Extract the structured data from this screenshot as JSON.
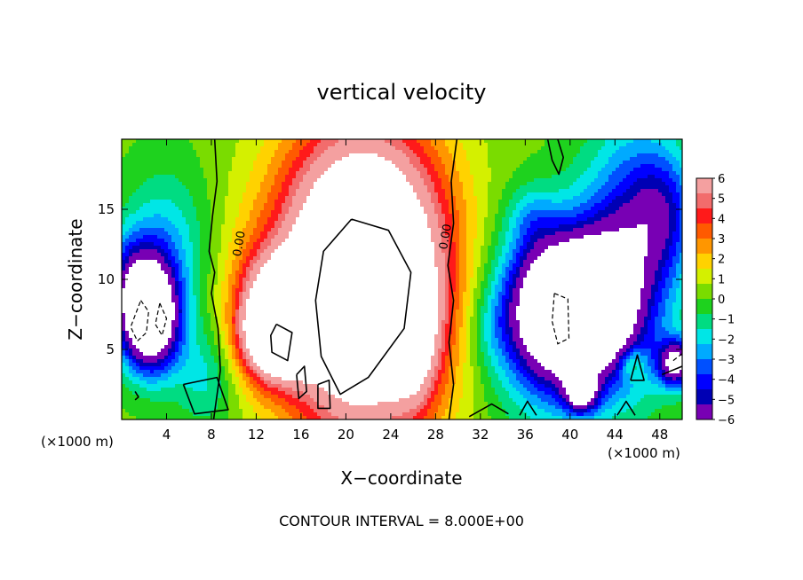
{
  "chart_data": {
    "type": "heatmap",
    "title": "vertical velocity",
    "xlabel": "X−coordinate",
    "ylabel": "Z−coordinate",
    "x_unit_label_left": "(×1000 m)",
    "x_unit_label_right": "(×1000 m)",
    "footer": "CONTOUR INTERVAL = 8.000E+00",
    "xlim": [
      0,
      50
    ],
    "ylim": [
      0,
      20
    ],
    "x_ticks": [
      4,
      8,
      12,
      16,
      20,
      24,
      28,
      32,
      36,
      40,
      44,
      48
    ],
    "y_ticks": [
      5,
      10,
      15
    ],
    "contour_labels": [
      {
        "text": "0.00",
        "x": 10.8,
        "z": 12.5,
        "angle": -80
      },
      {
        "text": "0.00",
        "x": 29.2,
        "z": 13.0,
        "angle": -80
      }
    ],
    "colorbar": {
      "min": -6,
      "max": 6,
      "ticks": [
        "6",
        "5",
        "4",
        "3",
        "2",
        "1",
        "0",
        "−1",
        "−2",
        "−3",
        "−4",
        "−5",
        "−6"
      ],
      "colors": [
        "#f4a0a0",
        "#f26c6c",
        "#ff1a1a",
        "#ff5a00",
        "#ff9600",
        "#ffd200",
        "#d4f000",
        "#7adc00",
        "#1ed21e",
        "#00dc82",
        "#00e6e6",
        "#00aaff",
        "#0050ff",
        "#0000ff",
        "#0000b4",
        "#7800b4"
      ]
    },
    "field": {
      "background": 0.2,
      "blobs": [
        {
          "x": 21.5,
          "z": 10.0,
          "sx": 5.2,
          "sz": 7.2,
          "a": 14
        },
        {
          "x": 14.0,
          "z": 6.0,
          "sx": 2.2,
          "sz": 2.0,
          "a": 9
        },
        {
          "x": 15.5,
          "z": 9.5,
          "sx": 2.5,
          "sz": 1.8,
          "a": 4
        },
        {
          "x": 26.0,
          "z": 6.0,
          "sx": 1.3,
          "sz": 3.0,
          "a": 4
        },
        {
          "x": 12.0,
          "z": 8.0,
          "sx": 2.0,
          "sz": 3.5,
          "a": 2
        },
        {
          "x": 2.5,
          "z": 7.0,
          "sx": 1.8,
          "sz": 2.5,
          "a": -10
        },
        {
          "x": 1.2,
          "z": 10.0,
          "sx": 2.0,
          "sz": 2.5,
          "a": -4
        },
        {
          "x": 4.0,
          "z": 12.0,
          "sx": 2.5,
          "sz": 4.0,
          "a": -2.5
        },
        {
          "x": 7.5,
          "z": 3.0,
          "sx": 2.0,
          "sz": 2.5,
          "a": -2
        },
        {
          "x": 39.5,
          "z": 8.0,
          "sx": 3.2,
          "sz": 3.5,
          "a": -10
        },
        {
          "x": 38.5,
          "z": 7.0,
          "sx": 4.5,
          "sz": 5.0,
          "a": -3.5
        },
        {
          "x": 45.5,
          "z": 12.0,
          "sx": 3.0,
          "sz": 6.0,
          "a": -5
        },
        {
          "x": 48.5,
          "z": 15.0,
          "sx": 2.0,
          "sz": 3.0,
          "a": -3
        },
        {
          "x": 43.0,
          "z": 8.0,
          "sx": 2.0,
          "sz": 3.0,
          "a": -3
        },
        {
          "x": 41.0,
          "z": 2.0,
          "sx": 1.0,
          "sz": 1.0,
          "a": -6
        },
        {
          "x": 49.5,
          "z": 4.0,
          "sx": 1.2,
          "sz": 1.2,
          "a": -7
        },
        {
          "x": 36.5,
          "z": 14.5,
          "sx": 1.5,
          "sz": 1.5,
          "a": -1.5
        },
        {
          "x": 33.0,
          "z": 6.5,
          "sx": 1.5,
          "sz": 2.0,
          "a": -1
        },
        {
          "x": 45.5,
          "z": 4.0,
          "sx": 0.8,
          "sz": 0.8,
          "a": 2.5
        }
      ]
    },
    "contours": {
      "solid": [
        [
          [
            8.3,
            20
          ],
          [
            8.5,
            17
          ],
          [
            8.1,
            14.5
          ],
          [
            7.8,
            12
          ],
          [
            8.3,
            10.5
          ],
          [
            8.0,
            9.0
          ],
          [
            8.6,
            6.5
          ],
          [
            8.8,
            3.5
          ],
          [
            8.2,
            0
          ]
        ],
        [
          [
            29.9,
            20
          ],
          [
            29.4,
            17
          ],
          [
            29.6,
            14
          ],
          [
            29.1,
            11
          ],
          [
            29.6,
            8.5
          ],
          [
            29.2,
            5.5
          ],
          [
            29.6,
            2.5
          ],
          [
            29.2,
            0
          ]
        ],
        [
          [
            20.5,
            14.3
          ],
          [
            23.8,
            13.5
          ],
          [
            25.8,
            10.5
          ],
          [
            25.2,
            6.5
          ],
          [
            22.0,
            3.0
          ],
          [
            19.5,
            1.8
          ],
          [
            17.8,
            4.5
          ],
          [
            17.3,
            8.5
          ],
          [
            18.0,
            12.0
          ],
          [
            20.5,
            14.3
          ]
        ],
        [
          [
            13.8,
            6.8
          ],
          [
            15.2,
            6.2
          ],
          [
            14.8,
            4.2
          ],
          [
            13.4,
            4.8
          ],
          [
            13.3,
            6.0
          ],
          [
            13.8,
            6.8
          ]
        ],
        [
          [
            5.5,
            2.5
          ],
          [
            8.5,
            3.0
          ],
          [
            9.5,
            0.7
          ],
          [
            6.5,
            0.4
          ],
          [
            5.5,
            2.5
          ]
        ],
        [
          [
            31.0,
            0.2
          ],
          [
            33.0,
            1.1
          ],
          [
            34.5,
            0.4
          ]
        ],
        [
          [
            35.5,
            0.3
          ],
          [
            36.2,
            1.3
          ],
          [
            37.0,
            0.3
          ]
        ],
        [
          [
            38.0,
            20
          ],
          [
            38.4,
            18.5
          ],
          [
            39.0,
            17.5
          ],
          [
            39.4,
            18.7
          ],
          [
            38.9,
            20
          ]
        ],
        [
          [
            44.2,
            0.3
          ],
          [
            45.0,
            1.3
          ],
          [
            45.8,
            0.3
          ]
        ],
        [
          [
            45.4,
            2.8
          ],
          [
            46.0,
            4.6
          ],
          [
            46.6,
            2.8
          ],
          [
            45.4,
            2.8
          ]
        ],
        [
          [
            48.2,
            3.2
          ],
          [
            50,
            3.8
          ]
        ],
        [
          [
            15.6,
            3.2
          ],
          [
            16.3,
            3.8
          ],
          [
            16.5,
            2.0
          ],
          [
            15.8,
            1.5
          ],
          [
            15.6,
            3.2
          ]
        ],
        [
          [
            17.5,
            2.5
          ],
          [
            18.5,
            2.8
          ],
          [
            18.6,
            0.8
          ],
          [
            17.5,
            0.8
          ],
          [
            17.5,
            2.5
          ]
        ],
        [
          [
            1.2,
            2.0
          ],
          [
            1.5,
            1.6
          ],
          [
            1.2,
            1.4
          ]
        ]
      ],
      "dashed": [
        [
          [
            1.7,
            8.5
          ],
          [
            2.4,
            7.7
          ],
          [
            2.2,
            6.2
          ],
          [
            1.4,
            5.6
          ],
          [
            0.8,
            6.6
          ],
          [
            1.7,
            8.5
          ]
        ],
        [
          [
            3.4,
            8.3
          ],
          [
            4.0,
            7.2
          ],
          [
            3.6,
            6.0
          ],
          [
            3.0,
            6.8
          ],
          [
            3.4,
            8.3
          ]
        ],
        [
          [
            38.6,
            9.0
          ],
          [
            39.8,
            8.6
          ],
          [
            39.9,
            5.8
          ],
          [
            38.9,
            5.4
          ],
          [
            38.4,
            7.0
          ],
          [
            38.6,
            9.0
          ]
        ],
        [
          [
            49.2,
            4.2
          ],
          [
            50,
            4.7
          ]
        ]
      ]
    }
  }
}
